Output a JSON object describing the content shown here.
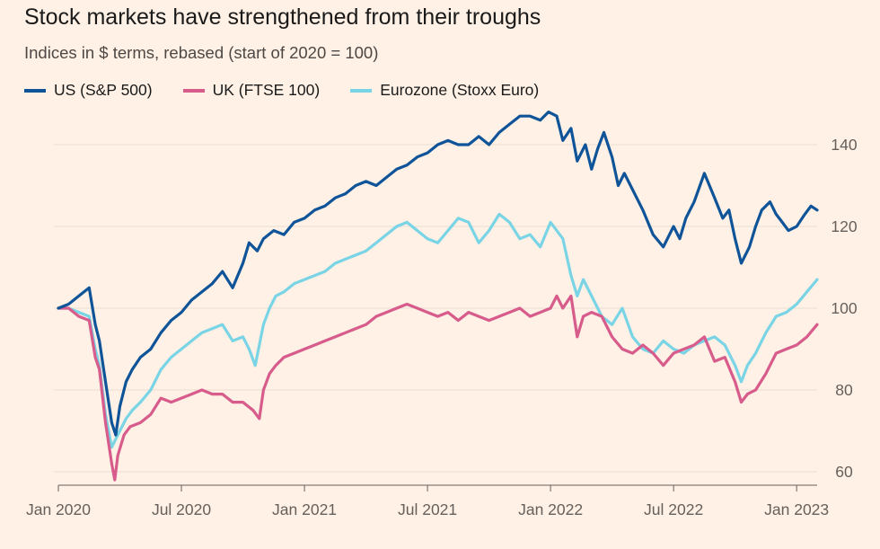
{
  "chart_data": {
    "type": "line",
    "title": "Stock markets have strengthened from their troughs",
    "subtitle": "Indices in $ terms, rebased (start of 2020 = 100)",
    "xlabel": "",
    "ylabel": "",
    "ylim": [
      58,
      148
    ],
    "yticks": [
      60,
      80,
      100,
      120,
      140
    ],
    "xlim": [
      0,
      37
    ],
    "xticks": [
      {
        "month": 0,
        "label": "Jan 2020"
      },
      {
        "month": 6,
        "label": "Jul 2020"
      },
      {
        "month": 12,
        "label": "Jan 2021"
      },
      {
        "month": 18,
        "label": "Jul 2021"
      },
      {
        "month": 24,
        "label": "Jan 2022"
      },
      {
        "month": 30,
        "label": "Jul 2022"
      },
      {
        "month": 36,
        "label": "Jan 2023"
      }
    ],
    "x_unit": "months since Jan 2020",
    "series": [
      {
        "name": "US (S&P 500)",
        "color": "#0f5499",
        "x": [
          0,
          0.5,
          1.0,
          1.5,
          1.8,
          2.0,
          2.3,
          2.6,
          2.8,
          3.0,
          3.3,
          3.6,
          4.0,
          4.5,
          5.0,
          5.5,
          6.0,
          6.5,
          7.0,
          7.5,
          8.0,
          8.5,
          9.0,
          9.3,
          9.7,
          10.0,
          10.5,
          11.0,
          11.5,
          12.0,
          12.5,
          13.0,
          13.5,
          14.0,
          14.5,
          15.0,
          15.5,
          16.0,
          16.5,
          17.0,
          17.5,
          18.0,
          18.5,
          19.0,
          19.5,
          20.0,
          20.5,
          21.0,
          21.5,
          22.0,
          22.5,
          23.0,
          23.5,
          23.9,
          24.3,
          24.6,
          25.0,
          25.3,
          25.7,
          26.0,
          26.3,
          26.6,
          27.0,
          27.3,
          27.6,
          28.0,
          28.5,
          29.0,
          29.5,
          30.0,
          30.3,
          30.6,
          31.0,
          31.5,
          32.0,
          32.4,
          32.7,
          33.0,
          33.3,
          33.7,
          34.0,
          34.3,
          34.7,
          35.0,
          35.3,
          35.6,
          36.0,
          36.4,
          36.7,
          37.0
        ],
        "values": [
          100,
          101,
          103,
          105,
          96,
          92,
          82,
          72,
          69,
          76,
          82,
          85,
          88,
          90,
          94,
          97,
          99,
          102,
          104,
          106,
          109,
          105,
          111,
          116,
          114,
          117,
          119,
          118,
          121,
          122,
          124,
          125,
          127,
          128,
          130,
          131,
          130,
          132,
          134,
          135,
          137,
          138,
          140,
          141,
          140,
          140,
          142,
          140,
          143,
          145,
          147,
          147,
          146,
          148,
          147,
          141,
          144,
          136,
          140,
          134,
          139,
          143,
          137,
          130,
          133,
          129,
          124,
          118,
          115,
          120,
          117,
          122,
          126,
          133,
          127,
          122,
          124,
          117,
          111,
          115,
          120,
          124,
          126,
          123,
          121,
          119,
          120,
          123,
          125,
          124
        ]
      },
      {
        "name": "UK (FTSE 100)",
        "color": "#d75b8b",
        "x": [
          0,
          0.5,
          1.0,
          1.5,
          1.8,
          2.0,
          2.3,
          2.6,
          2.75,
          2.9,
          3.2,
          3.5,
          4.0,
          4.5,
          5.0,
          5.5,
          6.0,
          6.5,
          7.0,
          7.5,
          8.0,
          8.5,
          9.0,
          9.5,
          9.8,
          10.0,
          10.3,
          10.6,
          11.0,
          11.5,
          12.0,
          12.5,
          13.0,
          13.5,
          14.0,
          14.5,
          15.0,
          15.5,
          16.0,
          16.5,
          17.0,
          17.5,
          18.0,
          18.5,
          19.0,
          19.5,
          20.0,
          20.5,
          21.0,
          21.5,
          22.0,
          22.5,
          23.0,
          23.5,
          24.0,
          24.3,
          24.6,
          25.0,
          25.3,
          25.6,
          26.0,
          26.5,
          27.0,
          27.5,
          28.0,
          28.5,
          29.0,
          29.5,
          30.0,
          30.5,
          31.0,
          31.5,
          32.0,
          32.5,
          33.0,
          33.3,
          33.6,
          34.0,
          34.5,
          35.0,
          35.5,
          36.0,
          36.5,
          37.0
        ],
        "values": [
          100,
          100,
          98,
          97,
          88,
          85,
          72,
          62,
          58,
          64,
          69,
          71,
          72,
          74,
          78,
          77,
          78,
          79,
          80,
          79,
          79,
          77,
          77,
          75,
          73,
          80,
          84,
          86,
          88,
          89,
          90,
          91,
          92,
          93,
          94,
          95,
          96,
          98,
          99,
          100,
          101,
          100,
          99,
          98,
          99,
          97,
          99,
          98,
          97,
          98,
          99,
          100,
          98,
          99,
          100,
          103,
          100,
          103,
          93,
          98,
          99,
          98,
          93,
          90,
          89,
          91,
          89,
          86,
          89,
          90,
          91,
          93,
          87,
          88,
          82,
          77,
          79,
          80,
          84,
          89,
          90,
          91,
          93,
          96
        ]
      },
      {
        "name": "Eurozone (Stoxx Euro)",
        "color": "#79d4e6",
        "x": [
          0,
          0.5,
          1.0,
          1.5,
          1.8,
          2.0,
          2.3,
          2.6,
          2.8,
          3.0,
          3.3,
          3.6,
          4.0,
          4.5,
          5.0,
          5.5,
          6.0,
          6.5,
          7.0,
          7.5,
          8.0,
          8.5,
          9.0,
          9.3,
          9.6,
          10.0,
          10.3,
          10.6,
          11.0,
          11.5,
          12.0,
          12.5,
          13.0,
          13.5,
          14.0,
          14.5,
          15.0,
          15.5,
          16.0,
          16.5,
          17.0,
          17.5,
          18.0,
          18.5,
          19.0,
          19.5,
          20.0,
          20.5,
          21.0,
          21.5,
          22.0,
          22.5,
          23.0,
          23.5,
          24.0,
          24.3,
          24.6,
          25.0,
          25.3,
          25.6,
          26.0,
          26.5,
          27.0,
          27.5,
          28.0,
          28.5,
          29.0,
          29.5,
          30.0,
          30.5,
          31.0,
          31.5,
          32.0,
          32.5,
          33.0,
          33.3,
          33.6,
          34.0,
          34.5,
          35.0,
          35.5,
          36.0,
          36.5,
          37.0
        ],
        "values": [
          100,
          100,
          99,
          98,
          90,
          86,
          74,
          66,
          68,
          70,
          73,
          75,
          77,
          80,
          85,
          88,
          90,
          92,
          94,
          95,
          96,
          92,
          93,
          90,
          86,
          96,
          100,
          103,
          104,
          106,
          107,
          108,
          109,
          111,
          112,
          113,
          114,
          116,
          118,
          120,
          121,
          119,
          117,
          116,
          119,
          122,
          121,
          116,
          119,
          123,
          121,
          117,
          118,
          115,
          121,
          119,
          117,
          108,
          103,
          107,
          103,
          98,
          96,
          100,
          93,
          90,
          89,
          92,
          90,
          89,
          91,
          92,
          93,
          91,
          86,
          82,
          86,
          89,
          94,
          98,
          99,
          101,
          104,
          107
        ]
      }
    ]
  }
}
